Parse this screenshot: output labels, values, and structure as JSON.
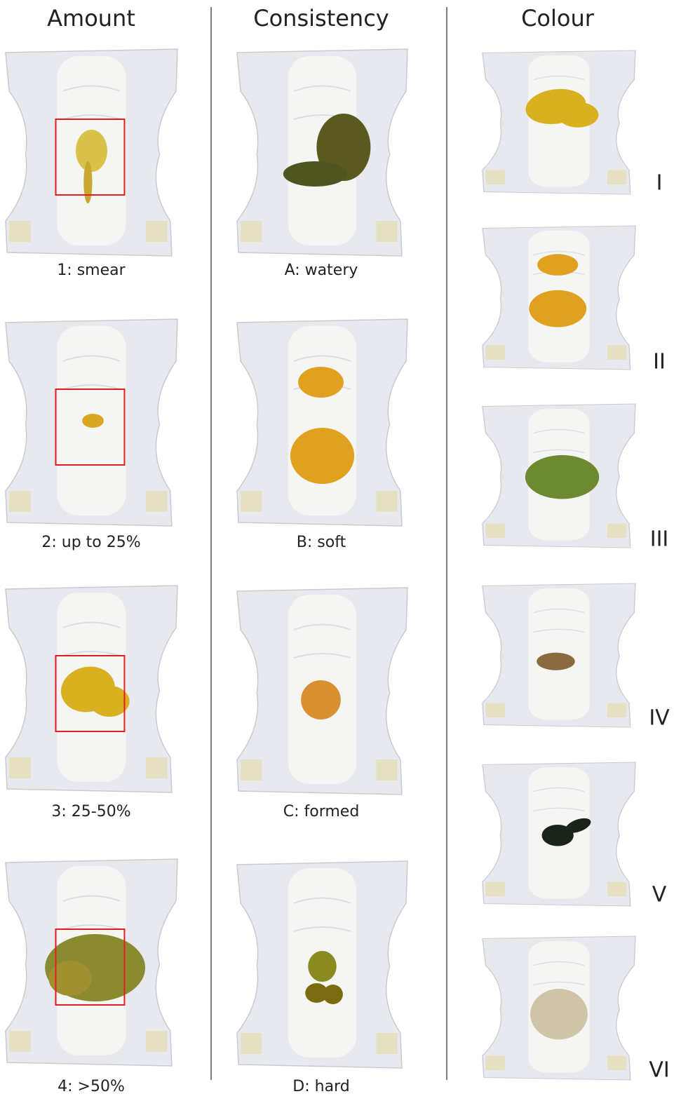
{
  "columns": [
    {
      "heading": "Amount",
      "items": [
        "1: smear",
        "2: up to 25%",
        "3: 25-50%",
        "4: >50%"
      ]
    },
    {
      "heading": "Consistency",
      "items": [
        "A: watery",
        "B: soft",
        "C: formed",
        "D: hard"
      ]
    },
    {
      "heading": "Colour",
      "items": [
        "I",
        "II",
        "III",
        "IV",
        "V",
        "VI"
      ]
    }
  ]
}
